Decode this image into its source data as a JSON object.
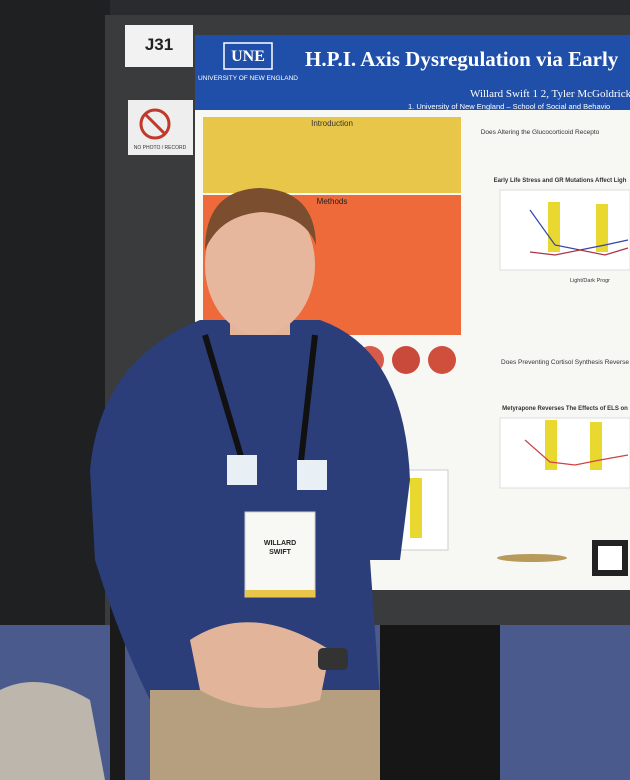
{
  "sign": {
    "booth": "J31",
    "notice": "NO PHOTO / RECORD"
  },
  "poster": {
    "logo": "UNE",
    "logo_sub": "UNIVERSITY OF NEW ENGLAND",
    "title": "H.P.I. Axis Dysregulation via Early",
    "authors": "Willard Swift 1 2, Tyler McGoldrick",
    "affiliation": "1. University of New England – School of Social and Behavio",
    "sections": [
      "Introduction",
      "Methods",
      "Does Altering the Glucocorticoid Recepto",
      "Early Life Stress and GR Mutations Affect Ligh",
      "Does Preventing Cortisol Synthesis Reverse",
      "Metyrapone Reverses The Effects of ELS on",
      "Light/Dark Progr"
    ]
  },
  "badge": {
    "name": "WILLARD SWIFT"
  }
}
